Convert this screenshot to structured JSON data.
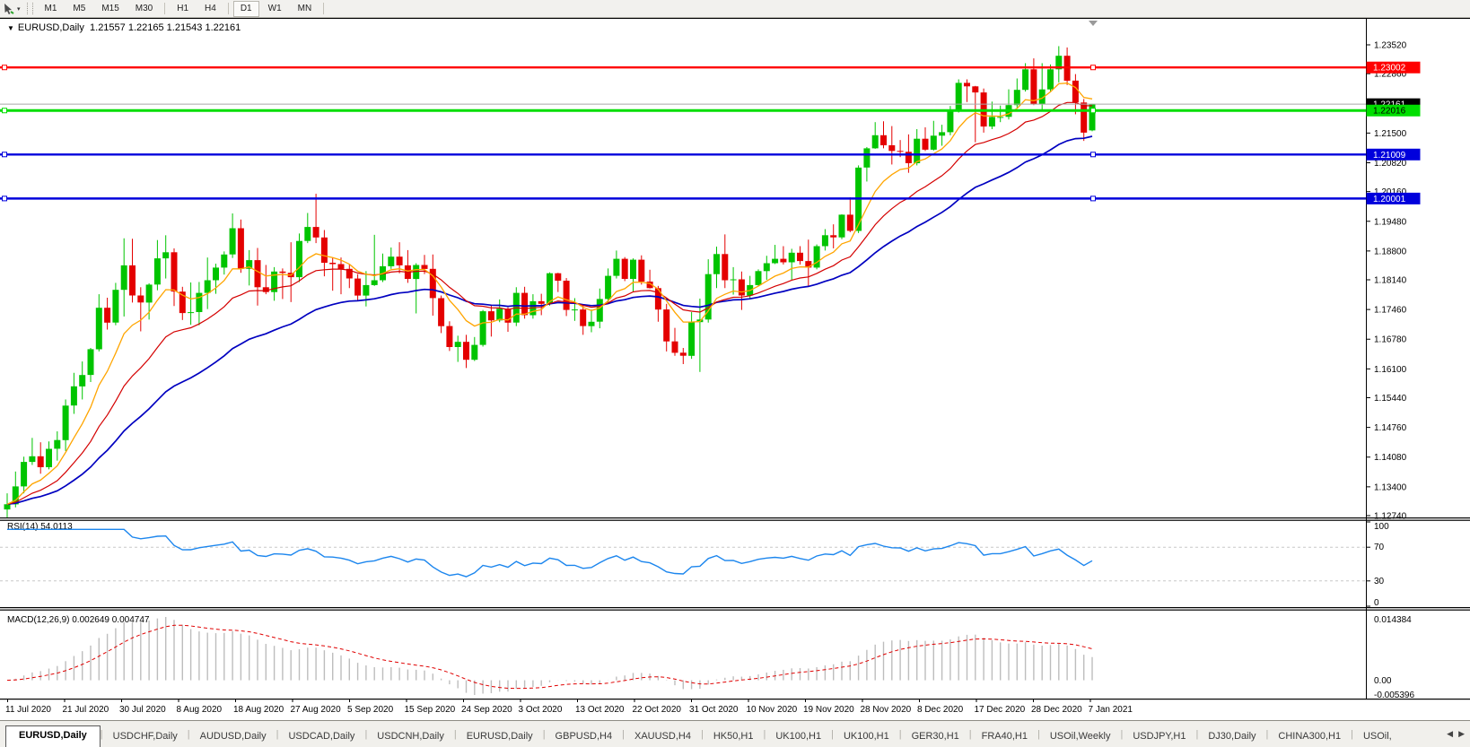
{
  "icons": {
    "dropdown_caret": "▾",
    "chart_menu": "▼",
    "scroll_left": "◀",
    "scroll_right": "▶"
  },
  "toolbar": {
    "timeframes": [
      "M1",
      "M5",
      "M15",
      "M30",
      "H1",
      "H4",
      "D1",
      "W1",
      "MN"
    ],
    "active_timeframe": "D1",
    "group_breaks": [
      "M30",
      "H4",
      "MN"
    ]
  },
  "chart": {
    "title": {
      "symbol": "EURUSD,Daily",
      "ohlc": "1.21557 1.22165 1.21543 1.22161"
    },
    "price_axis": {
      "ticks": [
        "1.23520",
        "1.22860",
        "1.22180",
        "1.21500",
        "1.20820",
        "1.20160",
        "1.19480",
        "1.18800",
        "1.18140",
        "1.17460",
        "1.16780",
        "1.16100",
        "1.15440",
        "1.14760",
        "1.14080",
        "1.13400",
        "1.12740"
      ],
      "current": {
        "label": "1.22161",
        "value": 1.22161,
        "chip_bg": "#000000",
        "chip_fg": "#FFFFFF",
        "line_color": "#A8A8A8"
      }
    },
    "hlines": [
      {
        "label": "1.23002",
        "price": 1.23002,
        "color": "#FF0000",
        "text_color": "#FFFFFF",
        "weight": 2.4
      },
      {
        "label": "1.22016",
        "price": 1.22016,
        "color": "#00DE00",
        "text_color": "#000000",
        "weight": 3
      },
      {
        "label": "1.21009",
        "price": 1.21009,
        "color": "#0000DC",
        "text_color": "#FFFFFF",
        "weight": 2.4
      },
      {
        "label": "1.20001",
        "price": 1.20001,
        "color": "#0000DC",
        "text_color": "#FFFFFF",
        "weight": 2.4
      }
    ],
    "date_axis": [
      "11 Jul 2020",
      "21 Jul 2020",
      "30 Jul 2020",
      "8 Aug 2020",
      "18 Aug 2020",
      "27 Aug 2020",
      "5 Sep 2020",
      "15 Sep 2020",
      "24 Sep 2020",
      "3 Oct 2020",
      "13 Oct 2020",
      "22 Oct 2020",
      "31 Oct 2020",
      "10 Nov 2020",
      "19 Nov 2020",
      "28 Nov 2020",
      "8 Dec 2020",
      "17 Dec 2020",
      "28 Dec 2020",
      "7 Jan 2021"
    ]
  },
  "rsi_panel": {
    "label": "RSI(14) 54.0113",
    "axis": [
      "100",
      "70",
      "30",
      "0"
    ]
  },
  "macd_panel": {
    "label": "MACD(12,26,9) 0.002649 0.004747",
    "axis_top": "0.014384",
    "axis_zero": "0.00",
    "axis_bottom": "-0.005396"
  },
  "tabs": {
    "items": [
      "EURUSD,Daily",
      "USDCHF,Daily",
      "AUDUSD,Daily",
      "USDCAD,Daily",
      "USDCNH,Daily",
      "EURUSD,Daily",
      "GBPUSD,H4",
      "XAUUSD,H4",
      "HK50,H1",
      "UK100,H1",
      "UK100,H1",
      "GER30,H1",
      "FRA40,H1",
      "USOil,Weekly",
      "USDJPY,H1",
      "DJ30,Daily",
      "CHINA300,H1",
      "USOil,"
    ],
    "active_index": 0
  },
  "chart_data": {
    "type": "candlestick",
    "symbol": "EURUSD",
    "timeframe": "Daily",
    "title": "EURUSD,Daily 1.21557 1.22165 1.21543 1.22161",
    "price_min": 1.1274,
    "price_max": 1.2352,
    "colors": {
      "bull": "#00C400",
      "bear": "#E40000",
      "ema_fast": "#FFA500",
      "ema_medium": "#D40000",
      "ema_slow": "#0000C0",
      "rsi": "#1C86EE",
      "rsi_levels": "#C8C8C8",
      "macd_histogram": "#BDBDBD",
      "macd_signal": "#E00000"
    },
    "overlays": [
      {
        "name": "ema-fast",
        "period": 8
      },
      {
        "name": "ema-medium",
        "period": 17
      },
      {
        "name": "ema-slow",
        "period": 34
      }
    ],
    "indicators": [
      {
        "name": "RSI",
        "period": 14,
        "value": "54.0113",
        "levels": [
          70,
          30
        ],
        "range": [
          0,
          100
        ]
      },
      {
        "name": "MACD",
        "fast": 12,
        "slow": 26,
        "signal": 9,
        "values": [
          "0.002649",
          "0.004747"
        ]
      }
    ],
    "candles": [
      [
        1.1288,
        1.1325,
        1.127,
        1.13
      ],
      [
        1.13,
        1.1375,
        1.1293,
        1.1341
      ],
      [
        1.1341,
        1.1409,
        1.1325,
        1.1397
      ],
      [
        1.1397,
        1.1452,
        1.139,
        1.141
      ],
      [
        1.141,
        1.1442,
        1.137,
        1.1385
      ],
      [
        1.1385,
        1.1444,
        1.138,
        1.1427
      ],
      [
        1.1427,
        1.1467,
        1.14,
        1.1447
      ],
      [
        1.1447,
        1.154,
        1.1422,
        1.1526
      ],
      [
        1.1526,
        1.1601,
        1.1507,
        1.157
      ],
      [
        1.157,
        1.1627,
        1.154,
        1.1596
      ],
      [
        1.1596,
        1.1658,
        1.158,
        1.1655
      ],
      [
        1.1655,
        1.1781,
        1.165,
        1.175
      ],
      [
        1.175,
        1.1773,
        1.17,
        1.1716
      ],
      [
        1.1716,
        1.1807,
        1.171,
        1.1791
      ],
      [
        1.1791,
        1.1909,
        1.173,
        1.1847
      ],
      [
        1.1847,
        1.1908,
        1.1762,
        1.1778
      ],
      [
        1.1778,
        1.1797,
        1.1696,
        1.1762
      ],
      [
        1.1762,
        1.1806,
        1.1723,
        1.1803
      ],
      [
        1.1803,
        1.1905,
        1.179,
        1.1863
      ],
      [
        1.1863,
        1.1916,
        1.1817,
        1.1877
      ],
      [
        1.1877,
        1.1886,
        1.1754,
        1.1787
      ],
      [
        1.1787,
        1.1798,
        1.1722,
        1.1738
      ],
      [
        1.1738,
        1.1808,
        1.1711,
        1.174
      ],
      [
        1.174,
        1.1809,
        1.171,
        1.1784
      ],
      [
        1.1784,
        1.1865,
        1.1747,
        1.1813
      ],
      [
        1.1813,
        1.1851,
        1.1782,
        1.1842
      ],
      [
        1.1842,
        1.1879,
        1.1826,
        1.1872
      ],
      [
        1.1872,
        1.1966,
        1.1864,
        1.1932
      ],
      [
        1.1932,
        1.1952,
        1.183,
        1.1839
      ],
      [
        1.1839,
        1.1882,
        1.1801,
        1.1859
      ],
      [
        1.1859,
        1.1887,
        1.1755,
        1.1797
      ],
      [
        1.1797,
        1.1848,
        1.1781,
        1.1786
      ],
      [
        1.1786,
        1.1843,
        1.1766,
        1.1833
      ],
      [
        1.1833,
        1.184,
        1.177,
        1.183
      ],
      [
        1.183,
        1.19,
        1.1763,
        1.182
      ],
      [
        1.182,
        1.192,
        1.1809,
        1.1903
      ],
      [
        1.1903,
        1.1967,
        1.1898,
        1.1935
      ],
      [
        1.1935,
        1.2011,
        1.1898,
        1.1911
      ],
      [
        1.1911,
        1.1928,
        1.1822,
        1.1853
      ],
      [
        1.1853,
        1.1865,
        1.1789,
        1.185
      ],
      [
        1.185,
        1.1865,
        1.1781,
        1.1839
      ],
      [
        1.1839,
        1.1849,
        1.1795,
        1.1817
      ],
      [
        1.1817,
        1.1827,
        1.1766,
        1.1778
      ],
      [
        1.1778,
        1.1834,
        1.1753,
        1.1802
      ],
      [
        1.1802,
        1.1917,
        1.18,
        1.1813
      ],
      [
        1.1813,
        1.1874,
        1.1809,
        1.1845
      ],
      [
        1.1845,
        1.1888,
        1.1839,
        1.1867
      ],
      [
        1.1867,
        1.19,
        1.1829,
        1.1847
      ],
      [
        1.1847,
        1.1882,
        1.1807,
        1.1816
      ],
      [
        1.1816,
        1.1852,
        1.1737,
        1.1848
      ],
      [
        1.1848,
        1.1871,
        1.1827,
        1.1839
      ],
      [
        1.1839,
        1.1872,
        1.1732,
        1.1772
      ],
      [
        1.1772,
        1.1778,
        1.1692,
        1.1708
      ],
      [
        1.1708,
        1.1719,
        1.1651,
        1.166
      ],
      [
        1.166,
        1.1686,
        1.1626,
        1.1672
      ],
      [
        1.1672,
        1.1688,
        1.1612,
        1.1631
      ],
      [
        1.1631,
        1.1683,
        1.1628,
        1.1665
      ],
      [
        1.1665,
        1.1745,
        1.1661,
        1.1742
      ],
      [
        1.1742,
        1.1755,
        1.1684,
        1.1721
      ],
      [
        1.1721,
        1.1769,
        1.1717,
        1.1748
      ],
      [
        1.1748,
        1.1751,
        1.1695,
        1.1716
      ],
      [
        1.1716,
        1.1797,
        1.1708,
        1.1784
      ],
      [
        1.1784,
        1.1798,
        1.1725,
        1.1733
      ],
      [
        1.1733,
        1.1781,
        1.1725,
        1.1765
      ],
      [
        1.1765,
        1.1782,
        1.1733,
        1.1759
      ],
      [
        1.1759,
        1.1831,
        1.1755,
        1.1829
      ],
      [
        1.1829,
        1.183,
        1.1786,
        1.1812
      ],
      [
        1.1812,
        1.1818,
        1.1731,
        1.1745
      ],
      [
        1.1745,
        1.1772,
        1.172,
        1.1746
      ],
      [
        1.1746,
        1.1758,
        1.1688,
        1.1708
      ],
      [
        1.1708,
        1.1746,
        1.1694,
        1.1718
      ],
      [
        1.1718,
        1.1794,
        1.1703,
        1.177
      ],
      [
        1.177,
        1.184,
        1.176,
        1.1823
      ],
      [
        1.1823,
        1.1881,
        1.1817,
        1.1862
      ],
      [
        1.1862,
        1.1866,
        1.1811,
        1.1816
      ],
      [
        1.1816,
        1.1863,
        1.1786,
        1.186
      ],
      [
        1.186,
        1.187,
        1.1803,
        1.181
      ],
      [
        1.181,
        1.1837,
        1.1794,
        1.1795
      ],
      [
        1.1795,
        1.18,
        1.1718,
        1.1746
      ],
      [
        1.1746,
        1.1759,
        1.165,
        1.1673
      ],
      [
        1.1673,
        1.1704,
        1.164,
        1.1647
      ],
      [
        1.1647,
        1.1658,
        1.1621,
        1.164
      ],
      [
        1.164,
        1.174,
        1.1633,
        1.1717
      ],
      [
        1.1717,
        1.1771,
        1.1603,
        1.1723
      ],
      [
        1.1723,
        1.1861,
        1.1716,
        1.1827
      ],
      [
        1.1827,
        1.189,
        1.1795,
        1.1873
      ],
      [
        1.1873,
        1.1918,
        1.1795,
        1.1813
      ],
      [
        1.1813,
        1.1843,
        1.178,
        1.1815
      ],
      [
        1.1815,
        1.1833,
        1.1745,
        1.1778
      ],
      [
        1.1778,
        1.1823,
        1.177,
        1.1802
      ],
      [
        1.1802,
        1.1838,
        1.1799,
        1.1834
      ],
      [
        1.1834,
        1.1869,
        1.1814,
        1.1852
      ],
      [
        1.1852,
        1.1894,
        1.185,
        1.1862
      ],
      [
        1.1862,
        1.1891,
        1.1849,
        1.1854
      ],
      [
        1.1854,
        1.1885,
        1.1813,
        1.1876
      ],
      [
        1.1876,
        1.1891,
        1.1849,
        1.1857
      ],
      [
        1.1857,
        1.1906,
        1.18,
        1.1842
      ],
      [
        1.1842,
        1.1895,
        1.1838,
        1.1891
      ],
      [
        1.1891,
        1.193,
        1.1881,
        1.1916
      ],
      [
        1.1916,
        1.1941,
        1.1886,
        1.1911
      ],
      [
        1.1911,
        1.1964,
        1.1907,
        1.1963
      ],
      [
        1.1963,
        1.2003,
        1.1923,
        1.1926
      ],
      [
        1.1926,
        1.2076,
        1.1921,
        1.2071
      ],
      [
        1.2071,
        1.2118,
        1.2039,
        1.2115
      ],
      [
        1.2115,
        1.2175,
        1.2114,
        1.2145
      ],
      [
        1.2145,
        1.2177,
        1.2115,
        1.2122
      ],
      [
        1.2122,
        1.2166,
        1.2078,
        1.2109
      ],
      [
        1.2109,
        1.2134,
        1.2095,
        1.2107
      ],
      [
        1.2107,
        1.2147,
        1.2059,
        1.2081
      ],
      [
        1.2081,
        1.2159,
        1.2076,
        1.2137
      ],
      [
        1.2137,
        1.2163,
        1.2109,
        1.2112
      ],
      [
        1.2112,
        1.2178,
        1.211,
        1.2144
      ],
      [
        1.2144,
        1.2169,
        1.2121,
        1.2152
      ],
      [
        1.2152,
        1.2212,
        1.2145,
        1.2199
      ],
      [
        1.2199,
        1.2273,
        1.2197,
        1.2265
      ],
      [
        1.2265,
        1.2273,
        1.2221,
        1.2257
      ],
      [
        1.2257,
        1.2258,
        1.2129,
        1.2243
      ],
      [
        1.2243,
        1.2252,
        1.2151,
        1.2165
      ],
      [
        1.2165,
        1.2222,
        1.2159,
        1.2187
      ],
      [
        1.2187,
        1.2213,
        1.2175,
        1.2187
      ],
      [
        1.2187,
        1.225,
        1.2181,
        1.2214
      ],
      [
        1.2214,
        1.2275,
        1.2208,
        1.2249
      ],
      [
        1.2249,
        1.231,
        1.2245,
        1.2296
      ],
      [
        1.2296,
        1.2321,
        1.2214,
        1.2216
      ],
      [
        1.2216,
        1.231,
        1.22,
        1.225
      ],
      [
        1.225,
        1.2307,
        1.2244,
        1.2296
      ],
      [
        1.2296,
        1.2349,
        1.2266,
        1.2327
      ],
      [
        1.2327,
        1.2346,
        1.226,
        1.227
      ],
      [
        1.227,
        1.2285,
        1.2193,
        1.222
      ],
      [
        1.222,
        1.2228,
        1.2132,
        1.2151
      ],
      [
        1.2156,
        1.2217,
        1.2154,
        1.2216
      ]
    ]
  }
}
